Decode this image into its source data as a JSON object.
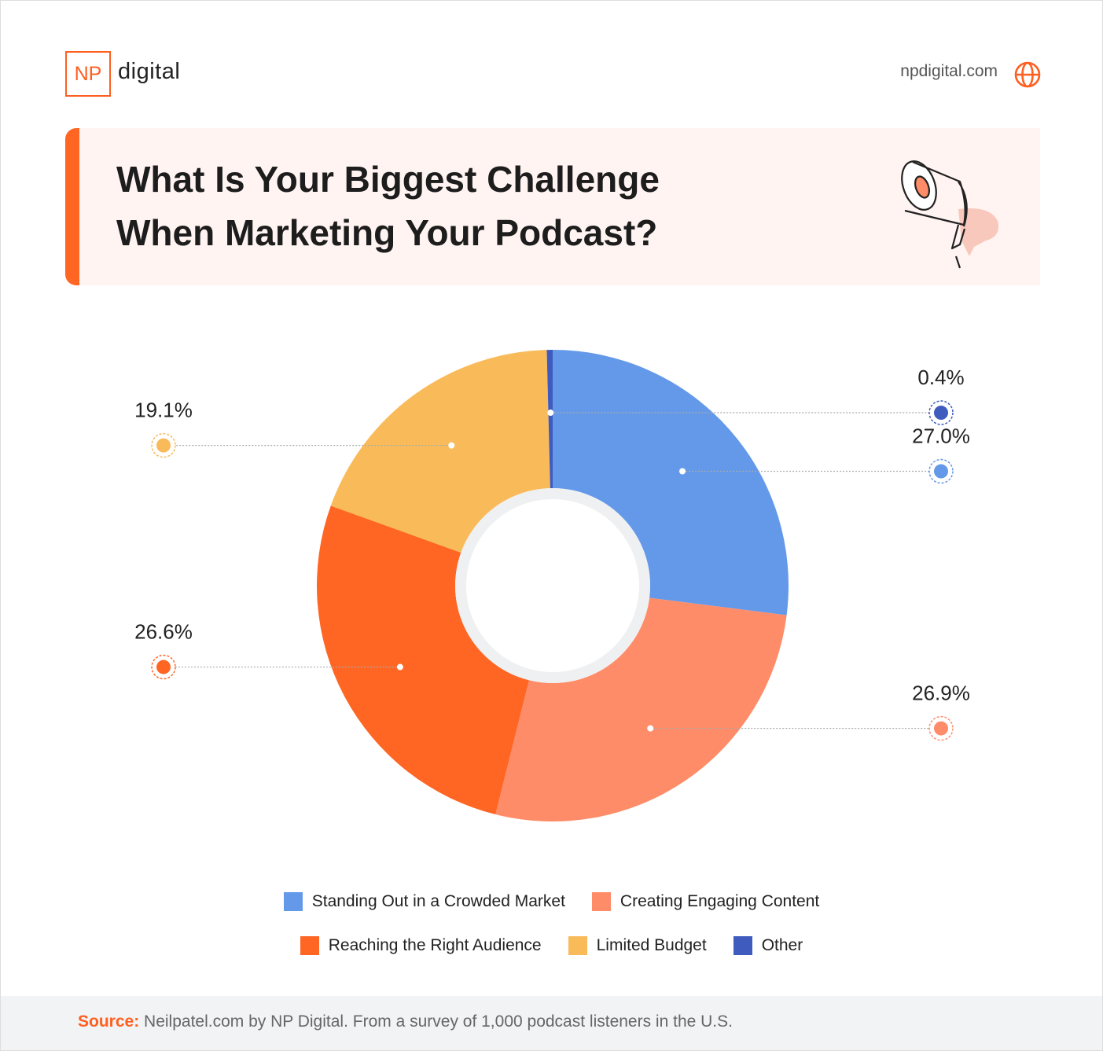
{
  "header": {
    "logo_mark": "NP",
    "logo_text": "digital",
    "site": "npdigital.com"
  },
  "chart_data": {
    "type": "donut",
    "title": [
      "What Is Your Biggest Challenge",
      "When Marketing Your Podcast?"
    ],
    "categories": [
      "Standing Out in a Crowded Market",
      "Creating Engaging Content",
      "Reaching the Right Audience",
      "Limited Budget",
      "Other"
    ],
    "values": [
      27.0,
      26.9,
      26.6,
      19.1,
      0.4
    ],
    "value_labels": [
      "27.0%",
      "26.9%",
      "26.6%",
      "19.1%",
      "0.4%"
    ],
    "colors": [
      "#6499e9",
      "#ff8c69",
      "#ff6624",
      "#f9bb5a",
      "#3f5bbd"
    ]
  },
  "footer": {
    "label": "Source:",
    "text": "Neilpatel.com by NP Digital. From a survey of 1,000 podcast listeners in the U.S."
  }
}
